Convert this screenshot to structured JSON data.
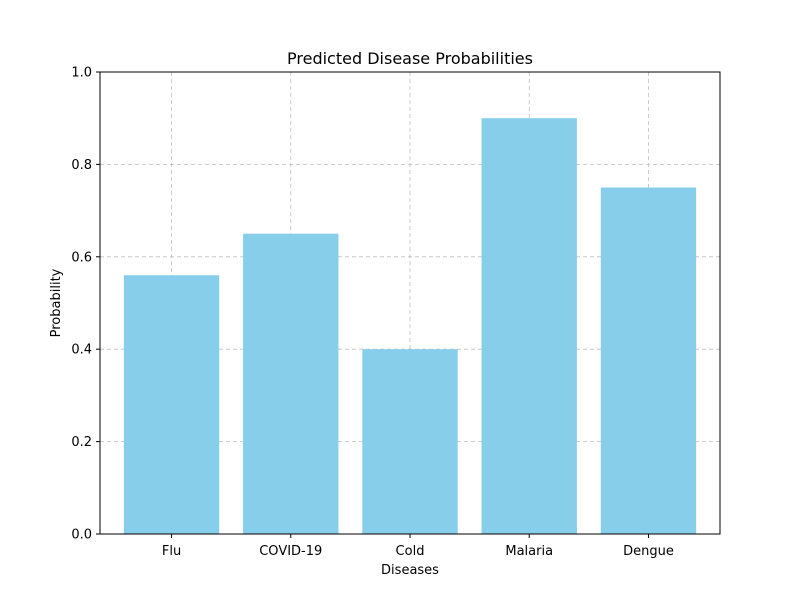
{
  "chart_data": {
    "type": "bar",
    "title": "Predicted Disease Probabilities",
    "xlabel": "Diseases",
    "ylabel": "Probability",
    "categories": [
      "Flu",
      "COVID-19",
      "Cold",
      "Malaria",
      "Dengue"
    ],
    "values": [
      0.56,
      0.65,
      0.4,
      0.9,
      0.75
    ],
    "ylim": [
      0,
      1.0
    ],
    "yticks": [
      "0.0",
      "0.2",
      "0.4",
      "0.6",
      "0.8",
      "1.0"
    ],
    "grid": true,
    "bar_color": "#87CEEB"
  }
}
